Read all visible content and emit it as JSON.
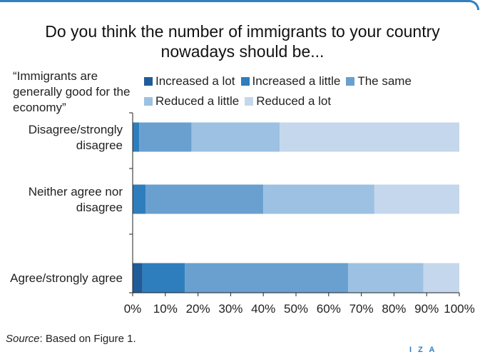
{
  "chart_data": {
    "type": "bar",
    "orientation": "horizontal",
    "stacked": true,
    "title": "Do you think the number of immigrants to your country nowadays should be...",
    "ylabel": "“Immigrants are generally good for the economy”",
    "categories": [
      "Disagree/strongly disagree",
      "Neither agree nor disagree",
      "Agree/strongly agree"
    ],
    "series": [
      {
        "name": "Increased a lot",
        "color": "#1f5c99",
        "values": [
          0,
          0,
          3
        ]
      },
      {
        "name": "Increased a little",
        "color": "#2e7ebd",
        "values": [
          2,
          4,
          13
        ]
      },
      {
        "name": "The same",
        "color": "#6aa0cf",
        "values": [
          16,
          36,
          50
        ]
      },
      {
        "name": "Reduced a little",
        "color": "#9cc1e2",
        "values": [
          27,
          34,
          23
        ]
      },
      {
        "name": "Reduced a lot",
        "color": "#c5d7ec",
        "values": [
          55,
          26,
          11
        ]
      }
    ],
    "xlim": [
      0,
      100
    ],
    "xticks": [
      "0%",
      "10%",
      "20%",
      "30%",
      "40%",
      "50%",
      "60%",
      "70%",
      "80%",
      "90%",
      "100%"
    ],
    "grid": false,
    "legend_position": "top"
  },
  "source_label": "Source",
  "source_text": ": Based on Figure 1.",
  "logo_text": "I Z A"
}
